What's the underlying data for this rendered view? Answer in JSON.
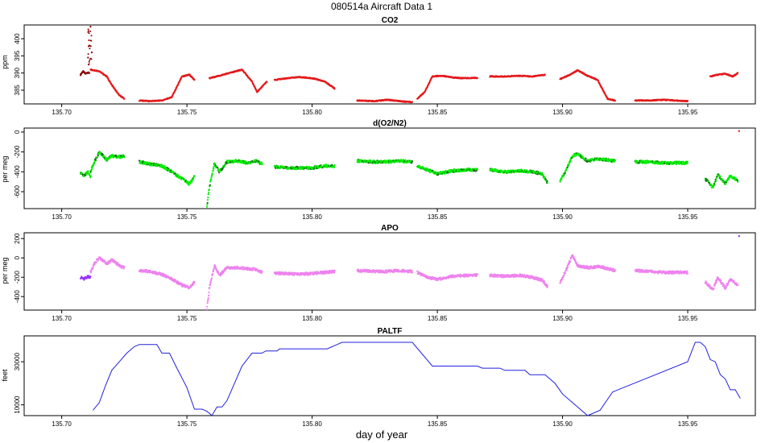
{
  "figure": {
    "title": "080514a    Aircraft Data 1",
    "xlabel": "day of year"
  },
  "colors": {
    "co2": "#e41a1c",
    "co2_early": "#8b0000",
    "o2n2": "#00ee00",
    "o2n2_dark": "#1a5a1a",
    "apo": "#ee82ee",
    "apo_early": "#9b30ff",
    "paltf": "#2020e0"
  },
  "chart_data": [
    {
      "type": "scatter",
      "title": "CO2",
      "ylabel": "ppm",
      "xlim": [
        135.685,
        135.977
      ],
      "ylim": [
        381,
        404
      ],
      "xticks": [
        135.7,
        135.75,
        135.8,
        135.85,
        135.9,
        135.95
      ],
      "xtick_labels": [
        "135.70",
        "135.75",
        "135.80",
        "135.85",
        "135.90",
        "135.95"
      ],
      "yticks": [
        385,
        390,
        395,
        400
      ],
      "ytick_labels": [
        "385",
        "390",
        "395",
        "400"
      ],
      "spike": {
        "x": [
          135.7105,
          135.711,
          135.7115,
          135.712
        ],
        "y": [
          394.5,
          398.0,
          403.5,
          396.0
        ]
      },
      "series": [
        {
          "x": [
            135.7075,
            135.7085,
            135.7095,
            135.7105,
            135.711
          ],
          "y": [
            389.5,
            390.5,
            389.8,
            390.2,
            390.0
          ]
        },
        {
          "x": [
            135.7115,
            135.715,
            135.718,
            135.72,
            135.723,
            135.725
          ],
          "y": [
            391.0,
            390.5,
            389.0,
            386.5,
            383.5,
            382.5
          ]
        },
        {
          "x": [
            135.731,
            135.735,
            135.74,
            135.744,
            135.748,
            135.751,
            135.753
          ],
          "y": [
            382.0,
            381.8,
            382.0,
            383.0,
            389.0,
            389.5,
            388.0
          ]
        },
        {
          "x": [
            135.759,
            135.763,
            135.768,
            135.772,
            135.776,
            135.778,
            135.78,
            135.782
          ],
          "y": [
            388.5,
            389.2,
            390.2,
            391.0,
            387.5,
            384.5,
            386.0,
            387.5
          ]
        },
        {
          "x": [
            135.785,
            135.79,
            135.795,
            135.8,
            135.805,
            135.809
          ],
          "y": [
            388.0,
            388.5,
            388.8,
            388.5,
            387.5,
            385.5
          ]
        },
        {
          "x": [
            135.818,
            135.825,
            135.83,
            135.835,
            135.84
          ],
          "y": [
            382.0,
            381.8,
            382.2,
            381.8,
            381.5
          ]
        },
        {
          "x": [
            135.842,
            135.845,
            135.848,
            135.852,
            135.856,
            135.86,
            135.866
          ],
          "y": [
            382.5,
            384.5,
            389.0,
            389.2,
            388.7,
            388.5,
            388.6
          ]
        },
        {
          "x": [
            135.871,
            135.877,
            135.883,
            135.888,
            135.893
          ],
          "y": [
            389.0,
            389.0,
            389.2,
            389.0,
            389.5
          ]
        },
        {
          "x": [
            135.899,
            135.903,
            135.906,
            135.91,
            135.914,
            135.918,
            135.921
          ],
          "y": [
            388.2,
            389.5,
            390.8,
            389.2,
            388.0,
            382.5,
            382.0
          ]
        },
        {
          "x": [
            135.929,
            135.935,
            135.94,
            135.945,
            135.95
          ],
          "y": [
            382.0,
            382.0,
            382.2,
            382.0,
            381.8
          ]
        },
        {
          "x": [
            135.959,
            135.962,
            135.965,
            135.968,
            135.97
          ],
          "y": [
            389.0,
            389.5,
            389.8,
            389.0,
            390.0
          ]
        }
      ]
    },
    {
      "type": "scatter",
      "title": "d(O2/N2)",
      "ylabel": "per meg",
      "xlim": [
        135.685,
        135.977
      ],
      "ylim": [
        -770,
        40
      ],
      "xticks": [
        135.7,
        135.75,
        135.8,
        135.85,
        135.9,
        135.95
      ],
      "xtick_labels": [
        "135.70",
        "135.75",
        "135.80",
        "135.85",
        "135.90",
        "135.95"
      ],
      "yticks": [
        -600,
        -400,
        -200,
        0
      ],
      "ytick_labels": [
        "-600",
        "-400",
        "-200",
        "0"
      ],
      "outlier": {
        "x": 135.9705,
        "y": 10
      },
      "series": [
        {
          "x": [
            135.7075,
            135.709,
            135.7105,
            135.7115
          ],
          "y": [
            -410,
            -440,
            -400,
            -450
          ]
        },
        {
          "x": [
            135.7115,
            135.713,
            135.715,
            135.718,
            135.72,
            135.723,
            135.725
          ],
          "y": [
            -400,
            -300,
            -200,
            -280,
            -240,
            -250,
            -240
          ]
        },
        {
          "x": [
            135.731,
            135.735,
            135.74,
            135.744,
            135.748,
            135.751,
            135.753
          ],
          "y": [
            -300,
            -320,
            -340,
            -400,
            -470,
            -520,
            -450
          ]
        },
        {
          "x": [
            135.758,
            135.759,
            135.761,
            135.763,
            135.766,
            135.77,
            135.774,
            135.778,
            135.78
          ],
          "y": [
            -750,
            -550,
            -320,
            -400,
            -300,
            -290,
            -310,
            -290,
            -320
          ]
        },
        {
          "x": [
            135.785,
            135.79,
            135.795,
            135.8,
            135.805,
            135.809
          ],
          "y": [
            -350,
            -360,
            -360,
            -360,
            -340,
            -340
          ]
        },
        {
          "x": [
            135.818,
            135.825,
            135.83,
            135.835,
            135.84
          ],
          "y": [
            -290,
            -300,
            -300,
            -290,
            -300
          ]
        },
        {
          "x": [
            135.842,
            135.846,
            135.85,
            135.856,
            135.862,
            135.866
          ],
          "y": [
            -340,
            -380,
            -420,
            -390,
            -380,
            -380
          ]
        },
        {
          "x": [
            135.871,
            135.877,
            135.883,
            135.888,
            135.892,
            135.894
          ],
          "y": [
            -380,
            -400,
            -390,
            -400,
            -420,
            -510
          ]
        },
        {
          "x": [
            135.899,
            135.901,
            135.904,
            135.906,
            135.91,
            135.915,
            135.921
          ],
          "y": [
            -500,
            -400,
            -240,
            -220,
            -290,
            -270,
            -290
          ]
        },
        {
          "x": [
            135.929,
            135.935,
            135.94,
            135.945,
            135.95
          ],
          "y": [
            -300,
            -300,
            -310,
            -310,
            -310
          ]
        },
        {
          "x": [
            135.957,
            135.96,
            135.962,
            135.965,
            135.967,
            135.97
          ],
          "y": [
            -470,
            -560,
            -430,
            -520,
            -440,
            -490
          ]
        }
      ]
    },
    {
      "type": "scatter",
      "title": "APO",
      "ylabel": "per meg",
      "xlim": [
        135.685,
        135.977
      ],
      "ylim": [
        -540,
        260
      ],
      "xticks": [
        135.7,
        135.75,
        135.8,
        135.85,
        135.9,
        135.95
      ],
      "xtick_labels": [
        "135.70",
        "135.75",
        "135.80",
        "135.85",
        "135.90",
        "135.95"
      ],
      "yticks": [
        -400,
        -200,
        0,
        200
      ],
      "ytick_labels": [
        "-400",
        "-200",
        "0",
        "200"
      ],
      "outlier": {
        "x": 135.9705,
        "y": 225
      },
      "series": [
        {
          "x": [
            135.7075,
            135.709,
            135.7105,
            135.7115
          ],
          "y": [
            -200,
            -220,
            -190,
            -200
          ]
        },
        {
          "x": [
            135.7115,
            135.713,
            135.715,
            135.718,
            135.72,
            135.723,
            135.725
          ],
          "y": [
            -150,
            -60,
            0,
            -60,
            -20,
            -80,
            -100
          ]
        },
        {
          "x": [
            135.731,
            135.735,
            135.74,
            135.744,
            135.748,
            135.751,
            135.753
          ],
          "y": [
            -130,
            -140,
            -170,
            -220,
            -280,
            -310,
            -250
          ]
        },
        {
          "x": [
            135.758,
            135.759,
            135.761,
            135.763,
            135.766,
            135.77,
            135.774,
            135.778,
            135.78
          ],
          "y": [
            -530,
            -300,
            -80,
            -180,
            -100,
            -100,
            -110,
            -120,
            -150
          ]
        },
        {
          "x": [
            135.785,
            135.79,
            135.795,
            135.8,
            135.805,
            135.809
          ],
          "y": [
            -160,
            -160,
            -170,
            -160,
            -150,
            -140
          ]
        },
        {
          "x": [
            135.818,
            135.825,
            135.83,
            135.835,
            135.84
          ],
          "y": [
            -130,
            -140,
            -140,
            -130,
            -140
          ]
        },
        {
          "x": [
            135.842,
            135.846,
            135.85,
            135.856,
            135.862,
            135.866
          ],
          "y": [
            -150,
            -200,
            -220,
            -190,
            -180,
            -180
          ]
        },
        {
          "x": [
            135.871,
            135.877,
            135.883,
            135.888,
            135.892,
            135.894
          ],
          "y": [
            -180,
            -190,
            -180,
            -200,
            -230,
            -300
          ]
        },
        {
          "x": [
            135.899,
            135.901,
            135.904,
            135.906,
            135.91,
            135.915,
            135.921
          ],
          "y": [
            -250,
            -150,
            30,
            -80,
            -100,
            -90,
            -130
          ]
        },
        {
          "x": [
            135.929,
            135.935,
            135.94,
            135.945,
            135.95
          ],
          "y": [
            -130,
            -140,
            -150,
            -150,
            -150
          ]
        },
        {
          "x": [
            135.957,
            135.96,
            135.962,
            135.965,
            135.967,
            135.97
          ],
          "y": [
            -250,
            -330,
            -200,
            -310,
            -220,
            -280
          ]
        }
      ]
    },
    {
      "type": "line",
      "title": "PALTF",
      "ylabel": "feet",
      "xlim": [
        135.685,
        135.977
      ],
      "ylim": [
        5000,
        42000
      ],
      "xticks": [
        135.7,
        135.75,
        135.8,
        135.85,
        135.9,
        135.95
      ],
      "xtick_labels": [
        "135.70",
        "135.75",
        "135.80",
        "135.85",
        "135.90",
        "135.95"
      ],
      "yticks": [
        10000,
        30000
      ],
      "ytick_labels": [
        "10000",
        "30000"
      ],
      "series": [
        {
          "x": [
            135.7125,
            135.715,
            135.7175,
            135.72,
            135.723,
            135.726,
            135.729,
            135.731,
            135.738,
            135.74,
            135.743,
            135.746,
            135.75,
            135.753,
            135.756,
            135.758,
            135.76,
            135.762,
            135.764,
            135.766,
            135.769,
            135.772,
            135.776,
            135.78,
            135.7815,
            135.786,
            135.787,
            135.8,
            135.806,
            135.81,
            135.812,
            135.84,
            135.848,
            135.866,
            135.868,
            135.875,
            135.877,
            135.885,
            135.887,
            135.893,
            135.897,
            135.9,
            135.904,
            135.91,
            135.915,
            135.92,
            135.95,
            135.953,
            135.955,
            135.957,
            135.959,
            135.961,
            135.963,
            135.965,
            135.967,
            135.969,
            135.971
          ],
          "y": [
            7500,
            11000,
            19000,
            26000,
            30000,
            34000,
            37000,
            38000,
            38000,
            34000,
            34000,
            27000,
            18000,
            8000,
            8000,
            7000,
            5000,
            9000,
            9000,
            12000,
            20000,
            28000,
            34000,
            34000,
            35000,
            35000,
            36000,
            36000,
            36000,
            38000,
            39000,
            39000,
            28000,
            28000,
            27000,
            27000,
            26000,
            26000,
            24000,
            24000,
            20000,
            15000,
            11000,
            5000,
            7500,
            16000,
            30000,
            39000,
            39000,
            37000,
            31000,
            30000,
            24000,
            22000,
            17000,
            17000,
            13000
          ]
        }
      ]
    }
  ]
}
